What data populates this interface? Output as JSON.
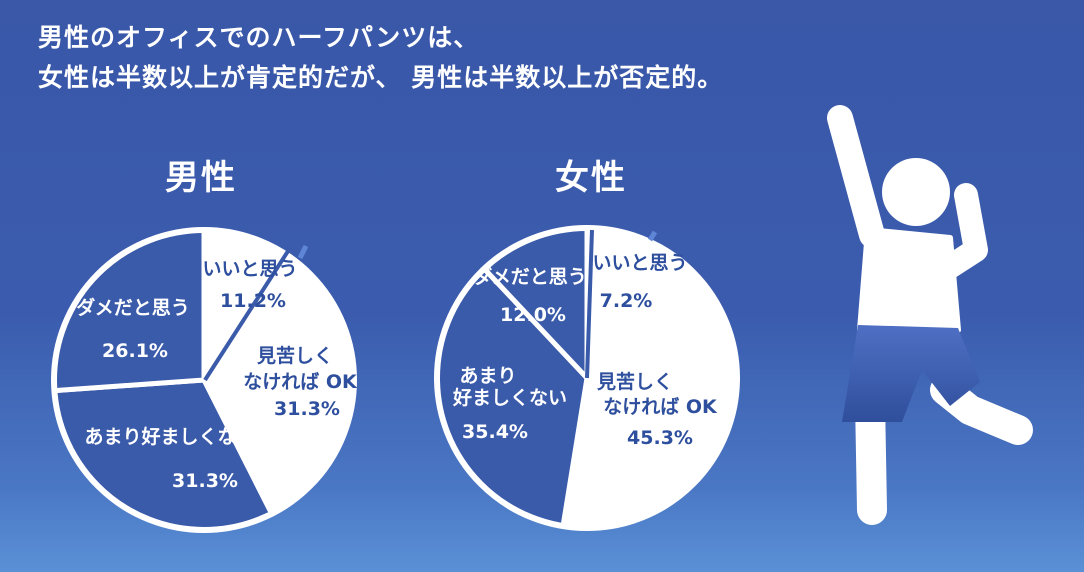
{
  "headline": {
    "line1": "男性のオフィスでのハーフパンツは、",
    "line2": "女性は半数以上が肯定的だが、 男性は半数以上が否定的。"
  },
  "colors": {
    "background": "#3b5cae",
    "slice_light": "#ffffff",
    "slice_dark": "#3a5aaa",
    "outline": "#ffffff",
    "label_dark": "#2e4f9e",
    "label_light": "#ffffff"
  },
  "chart_data": [
    {
      "type": "pie",
      "title": "男性",
      "slices": [
        {
          "label": "いいと思う",
          "value": 11.2,
          "value_text": "11.2%",
          "fill": "light"
        },
        {
          "label": "見苦しくなければ OK",
          "value": 31.3,
          "value_text": "31.3%",
          "fill": "light"
        },
        {
          "label": "あまり好ましくない",
          "value": 31.3,
          "value_text": "31.3%",
          "fill": "dark"
        },
        {
          "label": "ダメだと思う",
          "value": 26.1,
          "value_text": "26.1%",
          "fill": "dark"
        }
      ]
    },
    {
      "type": "pie",
      "title": "女性",
      "slices": [
        {
          "label": "いいと思う",
          "value": 7.2,
          "value_text": "7.2%",
          "fill": "light"
        },
        {
          "label": "見苦しくなければ OK",
          "value": 45.3,
          "value_text": "45.3%",
          "fill": "light"
        },
        {
          "label": "あまり好ましくない",
          "value": 35.4,
          "value_text": "35.4%",
          "fill": "dark"
        },
        {
          "label": "ダメだと思う",
          "value": 12.0,
          "value_text": "12.0%",
          "fill": "dark"
        }
      ]
    }
  ],
  "figure": {
    "icon": "jumping-person-icon"
  }
}
